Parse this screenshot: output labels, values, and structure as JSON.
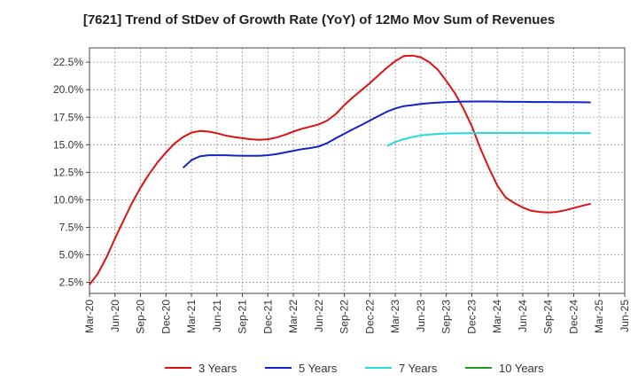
{
  "chart_data": {
    "type": "line",
    "title": "[7621]  Trend of StDev of Growth Rate (YoY) of 12Mo Mov Sum of Revenues",
    "xlabel": "",
    "ylabel": "",
    "x_ticks": [
      "Mar-20",
      "Jun-20",
      "Sep-20",
      "Dec-20",
      "Mar-21",
      "Jun-21",
      "Sep-21",
      "Dec-21",
      "Mar-22",
      "Jun-22",
      "Sep-22",
      "Dec-22",
      "Mar-23",
      "Jun-23",
      "Sep-23",
      "Dec-23",
      "Mar-24",
      "Jun-24",
      "Sep-24",
      "Dec-24",
      "Mar-25",
      "Jun-25"
    ],
    "y_ticks": [
      "2.5%",
      "5.0%",
      "7.5%",
      "10.0%",
      "12.5%",
      "15.0%",
      "17.5%",
      "20.0%",
      "22.5%"
    ],
    "y_tick_values": [
      2.5,
      5.0,
      7.5,
      10.0,
      12.5,
      15.0,
      17.5,
      20.0,
      22.5
    ],
    "ylim": [
      1.5,
      23.8
    ],
    "x_range_quarters": [
      0,
      21
    ],
    "grid": true,
    "legend_position": "bottom",
    "series": [
      {
        "name": "3 Years",
        "color": "#dd1111",
        "points": [
          [
            0,
            2.3
          ],
          [
            0.33,
            3.3
          ],
          [
            0.67,
            4.8
          ],
          [
            1,
            6.5
          ],
          [
            1.33,
            8.1
          ],
          [
            1.67,
            9.7
          ],
          [
            2,
            11.1
          ],
          [
            2.33,
            12.3
          ],
          [
            2.67,
            13.4
          ],
          [
            3,
            14.3
          ],
          [
            3.33,
            15.1
          ],
          [
            3.67,
            15.7
          ],
          [
            4,
            16.1
          ],
          [
            4.33,
            16.25
          ],
          [
            4.67,
            16.2
          ],
          [
            5,
            16.05
          ],
          [
            5.33,
            15.85
          ],
          [
            5.67,
            15.7
          ],
          [
            6,
            15.6
          ],
          [
            6.33,
            15.5
          ],
          [
            6.67,
            15.45
          ],
          [
            7,
            15.5
          ],
          [
            7.33,
            15.65
          ],
          [
            7.67,
            15.9
          ],
          [
            8,
            16.2
          ],
          [
            8.33,
            16.45
          ],
          [
            8.67,
            16.65
          ],
          [
            9,
            16.85
          ],
          [
            9.33,
            17.2
          ],
          [
            9.67,
            17.8
          ],
          [
            10,
            18.6
          ],
          [
            10.33,
            19.3
          ],
          [
            10.67,
            19.95
          ],
          [
            11,
            20.6
          ],
          [
            11.33,
            21.3
          ],
          [
            11.67,
            22.0
          ],
          [
            12,
            22.6
          ],
          [
            12.33,
            23.05
          ],
          [
            12.67,
            23.1
          ],
          [
            13,
            22.95
          ],
          [
            13.33,
            22.5
          ],
          [
            13.67,
            21.8
          ],
          [
            14,
            20.8
          ],
          [
            14.33,
            19.7
          ],
          [
            14.67,
            18.3
          ],
          [
            15,
            16.7
          ],
          [
            15.33,
            14.7
          ],
          [
            15.67,
            12.9
          ],
          [
            16,
            11.3
          ],
          [
            16.33,
            10.2
          ],
          [
            16.67,
            9.7
          ],
          [
            17,
            9.3
          ],
          [
            17.33,
            9.0
          ],
          [
            17.67,
            8.9
          ],
          [
            18,
            8.85
          ],
          [
            18.33,
            8.9
          ],
          [
            18.67,
            9.05
          ],
          [
            19,
            9.25
          ],
          [
            19.33,
            9.45
          ],
          [
            19.67,
            9.65
          ]
        ]
      },
      {
        "name": "5 Years",
        "color": "#1122cc",
        "points": [
          [
            3.67,
            12.9
          ],
          [
            4,
            13.6
          ],
          [
            4.33,
            13.95
          ],
          [
            4.67,
            14.05
          ],
          [
            5,
            14.05
          ],
          [
            5.33,
            14.05
          ],
          [
            5.67,
            14.02
          ],
          [
            6,
            14.0
          ],
          [
            6.33,
            14.0
          ],
          [
            6.67,
            14.0
          ],
          [
            7,
            14.05
          ],
          [
            7.33,
            14.15
          ],
          [
            7.67,
            14.3
          ],
          [
            8,
            14.45
          ],
          [
            8.33,
            14.6
          ],
          [
            8.67,
            14.7
          ],
          [
            9,
            14.85
          ],
          [
            9.33,
            15.15
          ],
          [
            9.67,
            15.6
          ],
          [
            10,
            16.0
          ],
          [
            10.33,
            16.4
          ],
          [
            10.67,
            16.8
          ],
          [
            11,
            17.2
          ],
          [
            11.33,
            17.6
          ],
          [
            11.67,
            18.0
          ],
          [
            12,
            18.3
          ],
          [
            12.33,
            18.5
          ],
          [
            12.67,
            18.6
          ],
          [
            13,
            18.7
          ],
          [
            13.33,
            18.78
          ],
          [
            13.67,
            18.83
          ],
          [
            14,
            18.87
          ],
          [
            14.33,
            18.9
          ],
          [
            14.67,
            18.92
          ],
          [
            15,
            18.93
          ],
          [
            15.33,
            18.93
          ],
          [
            15.67,
            18.93
          ],
          [
            16,
            18.92
          ],
          [
            16.5,
            18.9
          ],
          [
            17,
            18.9
          ],
          [
            17.5,
            18.88
          ],
          [
            18,
            18.88
          ],
          [
            18.5,
            18.87
          ],
          [
            19,
            18.87
          ],
          [
            19.67,
            18.85
          ]
        ]
      },
      {
        "name": "7 Years",
        "color": "#22dddd",
        "points": [
          [
            11.67,
            14.9
          ],
          [
            12,
            15.25
          ],
          [
            12.33,
            15.5
          ],
          [
            12.67,
            15.7
          ],
          [
            13,
            15.85
          ],
          [
            13.33,
            15.93
          ],
          [
            13.67,
            15.98
          ],
          [
            14,
            16.02
          ],
          [
            14.33,
            16.04
          ],
          [
            14.67,
            16.05
          ],
          [
            15,
            16.06
          ],
          [
            15.5,
            16.07
          ],
          [
            16,
            16.07
          ],
          [
            16.5,
            16.07
          ],
          [
            17,
            16.07
          ],
          [
            17.5,
            16.06
          ],
          [
            18,
            16.06
          ],
          [
            18.5,
            16.06
          ],
          [
            19,
            16.06
          ],
          [
            19.67,
            16.05
          ]
        ]
      },
      {
        "name": "10 Years",
        "color": "#229922",
        "points": []
      }
    ]
  }
}
